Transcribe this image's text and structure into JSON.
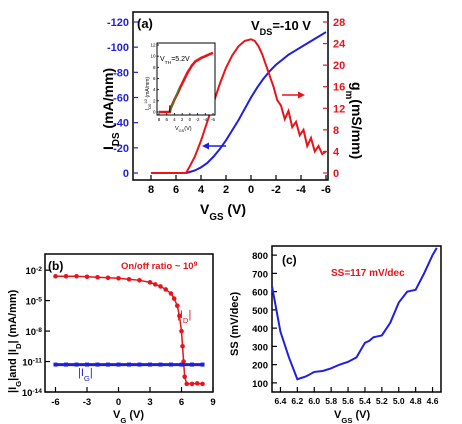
{
  "chart_data": [
    {
      "type": "line",
      "panel_label": "(a)",
      "annotation": "V",
      "annotation_sub": "DS",
      "annotation_val": "=-10 V",
      "xlabel": "V",
      "xlabel_sub": "GS",
      "xlabel_unit": " (V)",
      "ylabel_left": "I",
      "ylabel_left_sub": "DS",
      "ylabel_left_unit": " (mA/mm)",
      "ylabel_right": "g",
      "ylabel_right_sub": "m",
      "ylabel_right_unit": "(mS/mm)",
      "xlim": [
        8,
        -6
      ],
      "xticks": [
        "8",
        "6",
        "4",
        "2",
        "0",
        "-2",
        "-4",
        "-6"
      ],
      "ylim_left": [
        0,
        -120
      ],
      "yticks_left": [
        "0",
        "-20",
        "-40",
        "-60",
        "-80",
        "-100",
        "-120"
      ],
      "ylim_right": [
        0,
        28
      ],
      "yticks_right": [
        "0",
        "4",
        "8",
        "12",
        "16",
        "20",
        "24",
        "28"
      ],
      "colors": {
        "ids": "#1f1fe0",
        "gm": "#e8141b"
      },
      "series": [
        {
          "axis": "left",
          "x": [
            8,
            7,
            6,
            5.2,
            5,
            4.5,
            4,
            3.5,
            3,
            2.5,
            2,
            1.5,
            1,
            0.5,
            0,
            -0.5,
            -1,
            -1.5,
            -2,
            -2.5,
            -3,
            -3.5,
            -4,
            -4.5,
            -5,
            -5.5,
            -6
          ],
          "y": [
            0,
            0,
            0,
            0,
            -0.5,
            -2,
            -4.5,
            -8,
            -13,
            -19,
            -26,
            -34,
            -42,
            -51,
            -60,
            -68,
            -75,
            -81,
            -86,
            -90,
            -94,
            -97,
            -100,
            -103,
            -106,
            -109,
            -112
          ]
        },
        {
          "axis": "right",
          "x": [
            8,
            7,
            6,
            5.2,
            5,
            4.5,
            4,
            3.5,
            3,
            2.5,
            2,
            1.5,
            1,
            0.5,
            0,
            -0.3,
            -0.6,
            -0.9,
            -1.2,
            -1.5,
            -1.8,
            -2.1,
            -2.4,
            -2.7,
            -3,
            -3.3,
            -3.6,
            -3.9,
            -4.2,
            -4.5,
            -4.8,
            -5.1,
            -5.4,
            -5.7,
            -6
          ],
          "y": [
            0,
            0,
            0,
            0,
            0.8,
            3,
            6,
            9.5,
            13,
            16.5,
            19.5,
            21.8,
            23.5,
            24.5,
            24.8,
            24.5,
            23.5,
            22,
            20,
            18,
            16,
            13.5,
            12.5,
            10,
            11.5,
            8.5,
            9.5,
            7,
            8,
            5,
            6.5,
            4,
            5,
            3.5,
            4
          ]
        }
      ],
      "inset": {
        "annotation": "V",
        "annotation_sub": "TH",
        "annotation_val": "=5.2V",
        "xlabel": "V",
        "xlabel_sub": "GS",
        "xlabel_unit": "(V)",
        "ylabel": "I",
        "ylabel_sub": "DS",
        "ylabel_unit": " (mA/mm)",
        "ylabel_exp": "1/2",
        "xlim": [
          8,
          -6
        ],
        "ylim": [
          0,
          12
        ],
        "xticks": [
          "8",
          "6",
          "4",
          "2",
          "0",
          "-2",
          "-4",
          "-6"
        ],
        "yticks": [
          "0",
          "2",
          "4",
          "6",
          "8",
          "10",
          "12"
        ],
        "x": [
          8,
          7,
          6,
          5.2,
          5,
          4.5,
          4,
          3.5,
          3,
          2.5,
          2,
          1.5,
          1,
          0.5,
          0,
          -0.5,
          -1,
          -1.5,
          -2,
          -3,
          -4,
          -5,
          -6
        ],
        "y": [
          0,
          0,
          0,
          0,
          0.6,
          1.4,
          2.2,
          2.9,
          3.6,
          4.4,
          5.1,
          5.8,
          6.5,
          7.2,
          7.7,
          8.3,
          8.7,
          9.1,
          9.3,
          9.7,
          10.0,
          10.3,
          10.6
        ]
      }
    },
    {
      "type": "scatter",
      "panel_label": "(b)",
      "annotation": "On/off ratio ~ 10",
      "annotation_sup": "9",
      "xlabel": "V",
      "xlabel_sub": "G",
      "xlabel_unit": " (V)",
      "ylabel": "|I",
      "ylabel_sub1": "G",
      "ylabel_mid": "|and |I",
      "ylabel_sub2": "D",
      "ylabel_end": "| (mA/mm)",
      "xlim": [
        -7,
        9
      ],
      "xticks": [
        "-6",
        "-3",
        "0",
        "3",
        "6",
        "9"
      ],
      "ylim_log_exp": [
        -14,
        -1
      ],
      "yticks_base": "10",
      "yticks_exp": [
        "-2",
        "-5",
        "-8",
        "-11",
        "-14"
      ],
      "colors": {
        "id": "#e8141b",
        "ig": "#1f1fe0"
      },
      "series": [
        {
          "label": "|I",
          "label_sub": "D",
          "label_end": "|",
          "x": [
            -6,
            -5,
            -4,
            -3,
            -2,
            -1,
            0,
            1,
            2,
            3,
            3.5,
            4,
            4.5,
            5,
            5.3,
            5.6,
            5.8,
            6,
            6.1,
            6.2,
            6.3,
            6.5,
            7,
            7.5,
            8
          ],
          "y_log": [
            -2.6,
            -2.6,
            -2.6,
            -2.65,
            -2.7,
            -2.75,
            -2.8,
            -2.9,
            -3.0,
            -3.2,
            -3.4,
            -3.6,
            -3.9,
            -4.3,
            -4.8,
            -5.5,
            -6.5,
            -8.0,
            -9.5,
            -11.0,
            -12.5,
            -13.2,
            -13.2,
            -13.15,
            -13.2
          ]
        },
        {
          "label": "|I",
          "label_sub": "G",
          "label_end": "|",
          "x": [
            -6,
            -5,
            -4,
            -3,
            -2,
            -1,
            0,
            1,
            2,
            3,
            4,
            5,
            6,
            7,
            8
          ],
          "y_log": [
            -11.3,
            -11.3,
            -11.3,
            -11.3,
            -11.3,
            -11.3,
            -11.3,
            -11.3,
            -11.3,
            -11.3,
            -11.3,
            -11.3,
            -11.3,
            -11.3,
            -11.3
          ]
        }
      ]
    },
    {
      "type": "line",
      "panel_label": "(c)",
      "annotation": "SS=117 mV/dec",
      "xlabel": "V",
      "xlabel_sub": "GS",
      "xlabel_unit": " (V)",
      "ylabel": "SS (mV/dec)",
      "xlim": [
        6.5,
        4.5
      ],
      "xticks": [
        "6.4",
        "6.2",
        "6.0",
        "5.8",
        "5.6",
        "5.4",
        "5.2",
        "5.0",
        "4.8",
        "4.6"
      ],
      "ylim": [
        50,
        850
      ],
      "yticks": [
        "100",
        "200",
        "300",
        "400",
        "500",
        "600",
        "700",
        "800"
      ],
      "color": "#1f1fe0",
      "x": [
        6.5,
        6.4,
        6.3,
        6.2,
        6.1,
        6.0,
        5.9,
        5.8,
        5.7,
        5.6,
        5.5,
        5.45,
        5.4,
        5.35,
        5.3,
        5.2,
        5.1,
        5.0,
        4.9,
        4.8,
        4.7,
        4.6,
        4.55
      ],
      "y": [
        630,
        380,
        240,
        120,
        135,
        160,
        165,
        180,
        200,
        215,
        240,
        280,
        320,
        330,
        350,
        360,
        430,
        540,
        600,
        610,
        700,
        800,
        840
      ]
    }
  ]
}
